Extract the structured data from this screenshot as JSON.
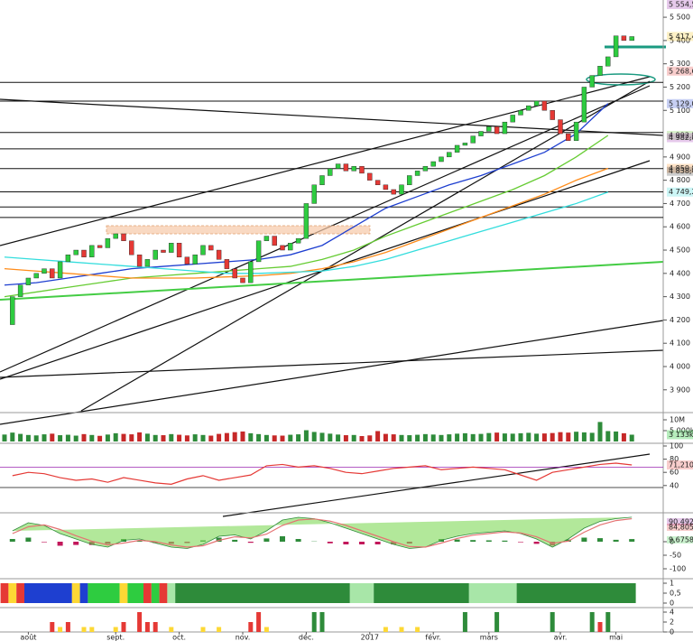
{
  "chart_data": {
    "type": "candlestick",
    "ylim": [
      3810,
      5574
    ],
    "yticks": [
      {
        "value": 5500,
        "label": "5 500"
      },
      {
        "value": 5400,
        "label": "5 400"
      },
      {
        "value": 5300,
        "label": "5 300"
      },
      {
        "value": 5200,
        "label": "5 200"
      },
      {
        "value": 5100,
        "label": "5 100"
      },
      {
        "value": 4900,
        "label": "4 900"
      },
      {
        "value": 4800,
        "label": "4 800"
      },
      {
        "value": 4700,
        "label": "4 700"
      },
      {
        "value": 4600,
        "label": "4 600"
      },
      {
        "value": 4500,
        "label": "4 500"
      },
      {
        "value": 4400,
        "label": "4 400"
      },
      {
        "value": 4300,
        "label": "4 300"
      },
      {
        "value": 4200,
        "label": "4 200"
      },
      {
        "value": 4100,
        "label": "4 100"
      },
      {
        "value": 4000,
        "label": "4 000"
      },
      {
        "value": 3900,
        "label": "3 900"
      }
    ],
    "price_labels": [
      {
        "value": 5554.5,
        "label": "5 554,50",
        "color": "#9c27b0"
      },
      {
        "value": 5417.4,
        "label": "5 417,40",
        "color": "#f5c518"
      },
      {
        "value": 5268.67,
        "label": "5 268,67",
        "color": "#e53935"
      },
      {
        "value": 5129.01,
        "label": "5 129,01",
        "color": "#1e3fd0"
      },
      {
        "value": 4992.5,
        "label": "4 992,50",
        "color": "#66cc33"
      },
      {
        "value": 4982.84,
        "label": "4 982,84",
        "color": "#9c27b0"
      },
      {
        "value": 4850.85,
        "label": "4 850,85",
        "color": "#ff8c1a"
      },
      {
        "value": 4838.4,
        "label": "4 838,40",
        "color": "#333333"
      },
      {
        "value": 4749.25,
        "label": "4 749,25",
        "color": "#33dddd"
      }
    ],
    "levels": [
      5220,
      5140,
      5005,
      4935,
      4850,
      4750,
      4685,
      4640
    ],
    "x_labels": [
      {
        "index": 3,
        "label": "août"
      },
      {
        "index": 14,
        "label": "sept."
      },
      {
        "index": 22,
        "label": "oct."
      },
      {
        "index": 30,
        "label": "nov."
      },
      {
        "index": 38,
        "label": "déc."
      },
      {
        "index": 46,
        "label": "2017"
      },
      {
        "index": 54,
        "label": "févr."
      },
      {
        "index": 61,
        "label": "mars"
      },
      {
        "index": 70,
        "label": "avr."
      },
      {
        "index": 77,
        "label": "mai"
      }
    ],
    "close": [
      4180,
      4300,
      4350,
      4380,
      4400,
      4420,
      4380,
      4450,
      4480,
      4500,
      4470,
      4520,
      4510,
      4550,
      4570,
      4540,
      4480,
      4430,
      4460,
      4500,
      4490,
      4530,
      4470,
      4440,
      4480,
      4520,
      4500,
      4460,
      4420,
      4380,
      4360,
      4450,
      4540,
      4560,
      4520,
      4500,
      4530,
      4550,
      4700,
      4780,
      4820,
      4850,
      4870,
      4840,
      4860,
      4830,
      4800,
      4780,
      4760,
      4740,
      4780,
      4820,
      4840,
      4860,
      4880,
      4900,
      4920,
      4950,
      4960,
      4990,
      5010,
      5030,
      5000,
      5050,
      5080,
      5100,
      5120,
      5140,
      5100,
      5060,
      5000,
      4970,
      5050,
      5200,
      5250,
      5290,
      5330,
      5420,
      5400,
      5417
    ],
    "overlay_x": [
      0,
      4,
      8,
      12,
      16,
      20,
      24,
      28,
      32,
      36,
      40,
      44,
      48,
      52,
      56,
      60,
      64,
      68,
      72,
      76
    ],
    "overlays": [
      {
        "color": "#1e3fd0",
        "values": [
          4350,
          4360,
          4380,
          4400,
          4420,
          4430,
          4440,
          4450,
          4460,
          4480,
          4520,
          4600,
          4680,
          4730,
          4780,
          4820,
          4870,
          4920,
          5000,
          5129.01
        ]
      },
      {
        "color": "#66cc33",
        "values": [
          4300,
          4320,
          4340,
          4360,
          4380,
          4390,
          4400,
          4410,
          4420,
          4430,
          4460,
          4500,
          4560,
          4610,
          4660,
          4710,
          4760,
          4820,
          4900,
          4992.5
        ]
      },
      {
        "color": "#ff8c1a",
        "values": [
          4420,
          4410,
          4400,
          4390,
          4380,
          4380,
          4380,
          4385,
          4390,
          4400,
          4420,
          4450,
          4490,
          4540,
          4590,
          4640,
          4690,
          4740,
          4800,
          4850.85
        ]
      },
      {
        "color": "#33dddd",
        "values": [
          4470,
          4460,
          4450,
          4440,
          4430,
          4420,
          4410,
          4400,
          4400,
          4405,
          4410,
          4430,
          4460,
          4500,
          4540,
          4580,
          4620,
          4660,
          4700,
          4749.25
        ]
      }
    ],
    "volume": {
      "ylim": [
        0,
        10000
      ],
      "yticks": [
        {
          "value": 10000,
          "label": "10M"
        },
        {
          "value": 5000,
          "label": "5 000k"
        }
      ],
      "last": {
        "value": 3133,
        "label": "3 133k"
      },
      "values": [
        3200,
        4100,
        3500,
        3000,
        2800,
        3300,
        3600,
        2900,
        3100,
        2700,
        3400,
        3000,
        2600,
        3200,
        3800,
        3500,
        3300,
        4200,
        3600,
        3000,
        2900,
        3400,
        3100,
        2800,
        3300,
        3000,
        2700,
        3500,
        3900,
        4300,
        4600,
        3800,
        3400,
        3000,
        2800,
        2700,
        3100,
        3300,
        5200,
        4400,
        4000,
        3600,
        3200,
        2900,
        3000,
        2500,
        2800,
        4800,
        3500,
        3300,
        3000,
        2900,
        3100,
        3400,
        3200,
        3000,
        3300,
        3600,
        3800,
        3400,
        3500,
        3900,
        4100,
        3700,
        3600,
        3800,
        4000,
        3600,
        3700,
        3900,
        4300,
        4100,
        4500,
        4200,
        4000,
        9000,
        4800,
        4600,
        3800,
        3133
      ]
    },
    "rsi": {
      "ylim": [
        0,
        100
      ],
      "yticks": [
        100,
        80,
        60,
        40
      ],
      "levels": [
        68,
        37
      ],
      "color": "#e53935",
      "last": {
        "value": 71.21,
        "label": "71,210"
      },
      "values": [
        55,
        60,
        58,
        52,
        48,
        50,
        45,
        52,
        48,
        44,
        42,
        50,
        55,
        48,
        52,
        56,
        70,
        72,
        68,
        70,
        66,
        60,
        58,
        62,
        66,
        68,
        70,
        64,
        66,
        68,
        66,
        64,
        56,
        48,
        60,
        64,
        68,
        72,
        74,
        71.21
      ]
    },
    "macd": {
      "ylim": [
        -100,
        100
      ],
      "yticks": [
        0,
        -50,
        -100
      ],
      "labels": [
        {
          "value": 90.492,
          "label": "90,492",
          "color": "#9c27b0"
        },
        {
          "value": 84.805,
          "label": "84,805",
          "color": "#e53935"
        },
        {
          "value": 9.6758,
          "label": "9,6758",
          "color": "#2ecc40"
        }
      ],
      "line": [
        40,
        70,
        60,
        30,
        10,
        -10,
        -20,
        5,
        10,
        -5,
        -20,
        -25,
        -10,
        20,
        25,
        10,
        40,
        80,
        90,
        85,
        70,
        50,
        30,
        10,
        -10,
        -25,
        -20,
        5,
        20,
        30,
        35,
        40,
        30,
        10,
        -20,
        10,
        50,
        75,
        85,
        90.492
      ],
      "signal": [
        30,
        55,
        62,
        45,
        22,
        2,
        -12,
        -5,
        5,
        0,
        -12,
        -20,
        -15,
        5,
        18,
        14,
        28,
        60,
        80,
        84,
        76,
        60,
        40,
        20,
        0,
        -18,
        -20,
        -5,
        12,
        24,
        30,
        36,
        32,
        18,
        -6,
        2,
        35,
        62,
        78,
        84.805
      ],
      "hist": [
        10,
        15,
        -2,
        -15,
        -12,
        -12,
        -8,
        10,
        5,
        -5,
        -8,
        -5,
        5,
        15,
        7,
        -4,
        12,
        20,
        10,
        1,
        -6,
        -10,
        -10,
        -10,
        -10,
        -7,
        0,
        10,
        8,
        6,
        5,
        4,
        -2,
        -8,
        -14,
        8,
        15,
        13,
        7,
        9.6758
      ]
    },
    "strip": {
      "yticks": [
        1,
        {
          "value": 0.5,
          "label": "0,5"
        },
        0
      ],
      "runs": [
        {
          "color": "#e53935",
          "count": 1
        },
        {
          "color": "#fdd835",
          "count": 1
        },
        {
          "color": "#e53935",
          "count": 1
        },
        {
          "color": "#1e3fd0",
          "count": 6
        },
        {
          "color": "#fdd835",
          "count": 1
        },
        {
          "color": "#1e3fd0",
          "count": 1
        },
        {
          "color": "#2ecc40",
          "count": 4
        },
        {
          "color": "#fdd835",
          "count": 1
        },
        {
          "color": "#2ecc40",
          "count": 2
        },
        {
          "color": "#e53935",
          "count": 1
        },
        {
          "color": "#2ecc40",
          "count": 1
        },
        {
          "color": "#e53935",
          "count": 1
        },
        {
          "color": "#a8e6a8",
          "count": 1
        },
        {
          "color": "#2e8b3a",
          "count": 22
        },
        {
          "color": "#a8e6a8",
          "count": 3
        },
        {
          "color": "#2e8b3a",
          "count": 12
        },
        {
          "color": "#a8e6a8",
          "count": 6
        },
        {
          "color": "#2e8b3a",
          "count": 15
        }
      ]
    },
    "events": {
      "ylim": [
        0,
        4
      ],
      "yticks": [
        4,
        2,
        0
      ],
      "items": [
        {
          "index": 6,
          "value": 2,
          "color": "#e53935"
        },
        {
          "index": 7,
          "value": 1,
          "color": "#fdd835"
        },
        {
          "index": 8,
          "value": 2,
          "color": "#e53935"
        },
        {
          "index": 10,
          "value": 1,
          "color": "#fdd835"
        },
        {
          "index": 11,
          "value": 1,
          "color": "#fdd835"
        },
        {
          "index": 14,
          "value": 1,
          "color": "#fdd835"
        },
        {
          "index": 15,
          "value": 2,
          "color": "#e53935"
        },
        {
          "index": 17,
          "value": 4,
          "color": "#e53935"
        },
        {
          "index": 18,
          "value": 2,
          "color": "#e53935"
        },
        {
          "index": 19,
          "value": 2,
          "color": "#e53935"
        },
        {
          "index": 21,
          "value": 1,
          "color": "#fdd835"
        },
        {
          "index": 25,
          "value": 1,
          "color": "#fdd835"
        },
        {
          "index": 27,
          "value": 1,
          "color": "#fdd835"
        },
        {
          "index": 31,
          "value": 2,
          "color": "#e53935"
        },
        {
          "index": 32,
          "value": 4,
          "color": "#e53935"
        },
        {
          "index": 33,
          "value": 1,
          "color": "#fdd835"
        },
        {
          "index": 39,
          "value": 4,
          "color": "#2e8b3a"
        },
        {
          "index": 40,
          "value": 4,
          "color": "#2e8b3a"
        },
        {
          "index": 48,
          "value": 1,
          "color": "#fdd835"
        },
        {
          "index": 50,
          "value": 1,
          "color": "#fdd835"
        },
        {
          "index": 52,
          "value": 1,
          "color": "#fdd835"
        },
        {
          "index": 58,
          "value": 4,
          "color": "#2e8b3a"
        },
        {
          "index": 62,
          "value": 4,
          "color": "#2e8b3a"
        },
        {
          "index": 69,
          "value": 4,
          "color": "#2e8b3a"
        },
        {
          "index": 74,
          "value": 4,
          "color": "#2e8b3a"
        },
        {
          "index": 75,
          "value": 2,
          "color": "#e53935"
        },
        {
          "index": 76,
          "value": 4,
          "color": "#2e8b3a"
        }
      ]
    }
  }
}
